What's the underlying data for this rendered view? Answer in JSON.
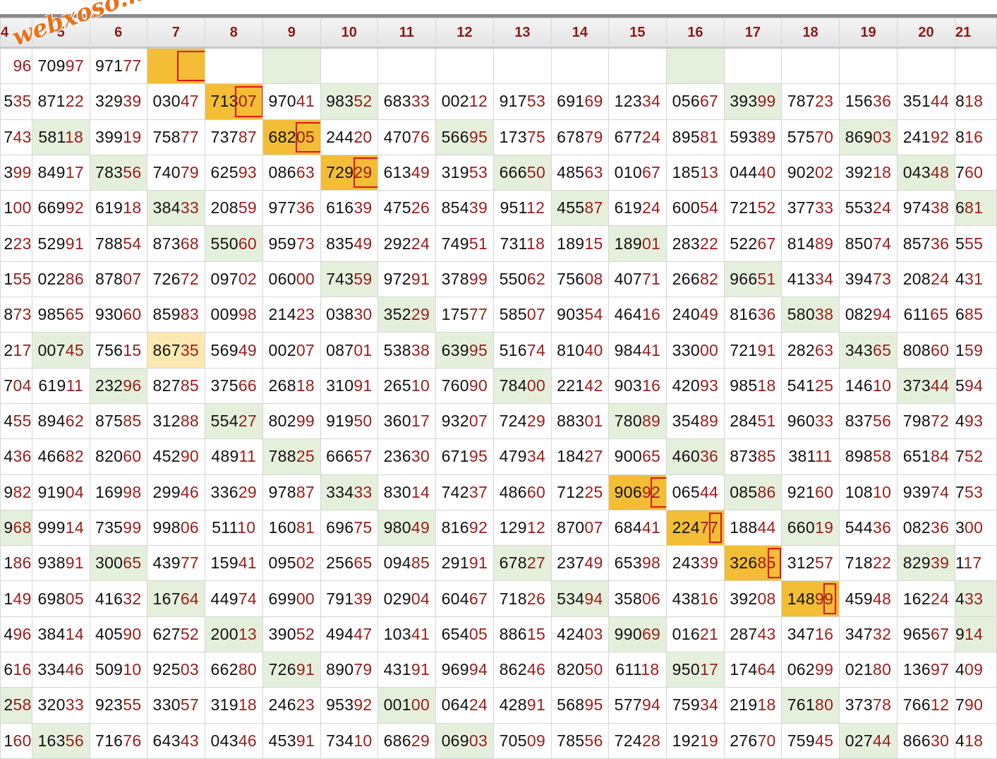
{
  "watermark": "webxoso.net",
  "headers": [
    "4",
    "5",
    "6",
    "7",
    "8",
    "9",
    "10",
    "11",
    "12",
    "13",
    "14",
    "15",
    "16",
    "17",
    "18",
    "19",
    "20",
    "21"
  ],
  "rows": [
    [
      {
        "t": "96"
      },
      {
        "t": "70997"
      },
      {
        "t": "97177"
      },
      {
        "t": "",
        "c": "o",
        "b": {
          "l": 42,
          "w": 45
        }
      },
      {
        "t": ""
      },
      {
        "t": "",
        "c": "g"
      },
      {
        "t": ""
      },
      {
        "t": ""
      },
      {
        "t": ""
      },
      {
        "t": ""
      },
      {
        "t": ""
      },
      {
        "t": ""
      },
      {
        "t": "",
        "c": "g"
      },
      {
        "t": ""
      },
      {
        "t": ""
      },
      {
        "t": ""
      },
      {
        "t": ""
      },
      {
        "t": ""
      }
    ],
    [
      {
        "t": "535"
      },
      {
        "t": "87122"
      },
      {
        "t": "32939"
      },
      {
        "t": "03047"
      },
      {
        "t": "71307",
        "c": "o",
        "b": {
          "l": 42,
          "w": 40
        }
      },
      {
        "t": "97041"
      },
      {
        "t": "98352",
        "c": "g"
      },
      {
        "t": "68333"
      },
      {
        "t": "00212"
      },
      {
        "t": "91753"
      },
      {
        "t": "69169"
      },
      {
        "t": "12334"
      },
      {
        "t": "05667"
      },
      {
        "t": "39399",
        "c": "g"
      },
      {
        "t": "78723"
      },
      {
        "t": "15636"
      },
      {
        "t": "35144"
      },
      {
        "t": "818"
      }
    ],
    [
      {
        "t": "743"
      },
      {
        "t": "58118",
        "c": "g"
      },
      {
        "t": "39919"
      },
      {
        "t": "75877"
      },
      {
        "t": "73787"
      },
      {
        "t": "68205",
        "c": "o",
        "b": {
          "l": 46,
          "w": 38
        }
      },
      {
        "t": "24420"
      },
      {
        "t": "47076"
      },
      {
        "t": "56695",
        "c": "g"
      },
      {
        "t": "17375"
      },
      {
        "t": "67879"
      },
      {
        "t": "67724"
      },
      {
        "t": "89581"
      },
      {
        "t": "59389"
      },
      {
        "t": "57570"
      },
      {
        "t": "86903",
        "c": "g"
      },
      {
        "t": "24192"
      },
      {
        "t": "816"
      }
    ],
    [
      {
        "t": "399"
      },
      {
        "t": "84917"
      },
      {
        "t": "78356",
        "c": "g"
      },
      {
        "t": "74079"
      },
      {
        "t": "62593"
      },
      {
        "t": "08663"
      },
      {
        "t": "72929",
        "c": "o",
        "b": {
          "l": 46,
          "w": 36
        }
      },
      {
        "t": "61349"
      },
      {
        "t": "31953"
      },
      {
        "t": "66650",
        "c": "g"
      },
      {
        "t": "48563"
      },
      {
        "t": "01067"
      },
      {
        "t": "18513"
      },
      {
        "t": "04440"
      },
      {
        "t": "90202"
      },
      {
        "t": "39218"
      },
      {
        "t": "04348",
        "c": "g"
      },
      {
        "t": "760"
      }
    ],
    [
      {
        "t": "100"
      },
      {
        "t": "66992"
      },
      {
        "t": "61918"
      },
      {
        "t": "38433",
        "c": "g"
      },
      {
        "t": "20859"
      },
      {
        "t": "97736"
      },
      {
        "t": "61639"
      },
      {
        "t": "47526"
      },
      {
        "t": "85439"
      },
      {
        "t": "95112"
      },
      {
        "t": "45587",
        "c": "g"
      },
      {
        "t": "61924"
      },
      {
        "t": "60054"
      },
      {
        "t": "72152"
      },
      {
        "t": "37733"
      },
      {
        "t": "55324"
      },
      {
        "t": "97438"
      },
      {
        "t": "681",
        "c": "g"
      }
    ],
    [
      {
        "t": "223"
      },
      {
        "t": "52991"
      },
      {
        "t": "78854"
      },
      {
        "t": "87368"
      },
      {
        "t": "55060",
        "c": "g"
      },
      {
        "t": "95973"
      },
      {
        "t": "83549"
      },
      {
        "t": "29224"
      },
      {
        "t": "74951"
      },
      {
        "t": "73118"
      },
      {
        "t": "18915"
      },
      {
        "t": "18901",
        "c": "g"
      },
      {
        "t": "28322"
      },
      {
        "t": "52267"
      },
      {
        "t": "81489"
      },
      {
        "t": "85074"
      },
      {
        "t": "85736"
      },
      {
        "t": "555"
      }
    ],
    [
      {
        "t": "155"
      },
      {
        "t": "02286"
      },
      {
        "t": "87807"
      },
      {
        "t": "72672"
      },
      {
        "t": "09702"
      },
      {
        "t": "06000"
      },
      {
        "t": "74359",
        "c": "g"
      },
      {
        "t": "97291"
      },
      {
        "t": "37899"
      },
      {
        "t": "55062"
      },
      {
        "t": "75608"
      },
      {
        "t": "40771"
      },
      {
        "t": "26682"
      },
      {
        "t": "96651",
        "c": "g"
      },
      {
        "t": "41334"
      },
      {
        "t": "39473"
      },
      {
        "t": "20824"
      },
      {
        "t": "431"
      }
    ],
    [
      {
        "t": "873"
      },
      {
        "t": "98565"
      },
      {
        "t": "93060"
      },
      {
        "t": "85983"
      },
      {
        "t": "00998"
      },
      {
        "t": "21423"
      },
      {
        "t": "03830"
      },
      {
        "t": "35229",
        "c": "g"
      },
      {
        "t": "17577"
      },
      {
        "t": "58507"
      },
      {
        "t": "90354"
      },
      {
        "t": "46416"
      },
      {
        "t": "24049"
      },
      {
        "t": "81636"
      },
      {
        "t": "58038",
        "c": "g"
      },
      {
        "t": "08294"
      },
      {
        "t": "61165"
      },
      {
        "t": "685"
      }
    ],
    [
      {
        "t": "217"
      },
      {
        "t": "00745",
        "c": "g"
      },
      {
        "t": "75615"
      },
      {
        "t": "86735",
        "c": "y"
      },
      {
        "t": "56949"
      },
      {
        "t": "00207"
      },
      {
        "t": "08701"
      },
      {
        "t": "53838"
      },
      {
        "t": "63995",
        "c": "g"
      },
      {
        "t": "51674"
      },
      {
        "t": "81040"
      },
      {
        "t": "98441"
      },
      {
        "t": "33000"
      },
      {
        "t": "72191"
      },
      {
        "t": "28263"
      },
      {
        "t": "34365",
        "c": "g"
      },
      {
        "t": "80860"
      },
      {
        "t": "159"
      }
    ],
    [
      {
        "t": "704"
      },
      {
        "t": "61911"
      },
      {
        "t": "23296",
        "c": "g"
      },
      {
        "t": "82785"
      },
      {
        "t": "37566"
      },
      {
        "t": "26818"
      },
      {
        "t": "31091"
      },
      {
        "t": "26510"
      },
      {
        "t": "76090"
      },
      {
        "t": "78400",
        "c": "g"
      },
      {
        "t": "22142"
      },
      {
        "t": "90316"
      },
      {
        "t": "42093"
      },
      {
        "t": "98518"
      },
      {
        "t": "54125"
      },
      {
        "t": "14610"
      },
      {
        "t": "37344",
        "c": "g"
      },
      {
        "t": "594"
      }
    ],
    [
      {
        "t": "455"
      },
      {
        "t": "89462"
      },
      {
        "t": "87585"
      },
      {
        "t": "31288"
      },
      {
        "t": "55427",
        "c": "g"
      },
      {
        "t": "80299"
      },
      {
        "t": "91950"
      },
      {
        "t": "36017"
      },
      {
        "t": "93207"
      },
      {
        "t": "72429"
      },
      {
        "t": "88301"
      },
      {
        "t": "78089",
        "c": "g"
      },
      {
        "t": "35489"
      },
      {
        "t": "28451"
      },
      {
        "t": "96033"
      },
      {
        "t": "83756"
      },
      {
        "t": "79872"
      },
      {
        "t": "493"
      }
    ],
    [
      {
        "t": "436"
      },
      {
        "t": "46682"
      },
      {
        "t": "82060"
      },
      {
        "t": "45290"
      },
      {
        "t": "48911"
      },
      {
        "t": "78825",
        "c": "g"
      },
      {
        "t": "66657"
      },
      {
        "t": "23630"
      },
      {
        "t": "67195"
      },
      {
        "t": "47934"
      },
      {
        "t": "18427"
      },
      {
        "t": "90065"
      },
      {
        "t": "46036",
        "c": "g"
      },
      {
        "t": "87385"
      },
      {
        "t": "38111"
      },
      {
        "t": "89858"
      },
      {
        "t": "65184"
      },
      {
        "t": "752"
      }
    ],
    [
      {
        "t": "982"
      },
      {
        "t": "91904"
      },
      {
        "t": "16998"
      },
      {
        "t": "29946"
      },
      {
        "t": "33629"
      },
      {
        "t": "97887"
      },
      {
        "t": "33433",
        "c": "g"
      },
      {
        "t": "83014"
      },
      {
        "t": "74237"
      },
      {
        "t": "48660"
      },
      {
        "t": "71225"
      },
      {
        "t": "90692",
        "c": "o",
        "b": {
          "l": 59,
          "w": 26
        }
      },
      {
        "t": "06544"
      },
      {
        "t": "08586",
        "c": "g"
      },
      {
        "t": "92160"
      },
      {
        "t": "10810"
      },
      {
        "t": "93974"
      },
      {
        "t": "753"
      }
    ],
    [
      {
        "t": "968",
        "c": "g"
      },
      {
        "t": "99914"
      },
      {
        "t": "73599"
      },
      {
        "t": "99806"
      },
      {
        "t": "51110"
      },
      {
        "t": "16081"
      },
      {
        "t": "69675"
      },
      {
        "t": "98049",
        "c": "g"
      },
      {
        "t": "81692"
      },
      {
        "t": "12912"
      },
      {
        "t": "87007"
      },
      {
        "t": "68441"
      },
      {
        "t": "22477",
        "c": "o",
        "b": {
          "l": 60,
          "w": 18
        }
      },
      {
        "t": "18844"
      },
      {
        "t": "66019",
        "c": "g"
      },
      {
        "t": "54436"
      },
      {
        "t": "08236"
      },
      {
        "t": "300"
      }
    ],
    [
      {
        "t": "186"
      },
      {
        "t": "93891"
      },
      {
        "t": "30065",
        "c": "g"
      },
      {
        "t": "43977"
      },
      {
        "t": "15941"
      },
      {
        "t": "09502"
      },
      {
        "t": "25665"
      },
      {
        "t": "09485"
      },
      {
        "t": "29191"
      },
      {
        "t": "67827",
        "c": "g"
      },
      {
        "t": "23749"
      },
      {
        "t": "65398"
      },
      {
        "t": "24339"
      },
      {
        "t": "32685",
        "c": "o",
        "b": {
          "l": 61,
          "w": 19
        }
      },
      {
        "t": "31257"
      },
      {
        "t": "71822"
      },
      {
        "t": "82939",
        "c": "g"
      },
      {
        "t": "117"
      }
    ],
    [
      {
        "t": "149"
      },
      {
        "t": "69805"
      },
      {
        "t": "41632"
      },
      {
        "t": "16764",
        "c": "g"
      },
      {
        "t": "44974"
      },
      {
        "t": "69900"
      },
      {
        "t": "79139"
      },
      {
        "t": "02904"
      },
      {
        "t": "60467"
      },
      {
        "t": "71826"
      },
      {
        "t": "53494",
        "c": "g"
      },
      {
        "t": "35806"
      },
      {
        "t": "43816"
      },
      {
        "t": "39208"
      },
      {
        "t": "14899",
        "c": "o",
        "b": {
          "l": 59,
          "w": 18
        }
      },
      {
        "t": "45948"
      },
      {
        "t": "16224"
      },
      {
        "t": "433",
        "c": "g"
      }
    ],
    [
      {
        "t": "496"
      },
      {
        "t": "38414"
      },
      {
        "t": "40590"
      },
      {
        "t": "62752"
      },
      {
        "t": "20013",
        "c": "g"
      },
      {
        "t": "39052"
      },
      {
        "t": "49447"
      },
      {
        "t": "10341"
      },
      {
        "t": "65405"
      },
      {
        "t": "88615"
      },
      {
        "t": "42403"
      },
      {
        "t": "99069",
        "c": "g"
      },
      {
        "t": "01621"
      },
      {
        "t": "28743"
      },
      {
        "t": "34716"
      },
      {
        "t": "34732"
      },
      {
        "t": "96567"
      },
      {
        "t": "914",
        "c": "g"
      }
    ],
    [
      {
        "t": "616"
      },
      {
        "t": "33446"
      },
      {
        "t": "50910"
      },
      {
        "t": "92503"
      },
      {
        "t": "66280"
      },
      {
        "t": "72691",
        "c": "g"
      },
      {
        "t": "89079"
      },
      {
        "t": "43191"
      },
      {
        "t": "96994"
      },
      {
        "t": "86246"
      },
      {
        "t": "82050"
      },
      {
        "t": "61118"
      },
      {
        "t": "95017",
        "c": "g"
      },
      {
        "t": "17464"
      },
      {
        "t": "06299"
      },
      {
        "t": "02180"
      },
      {
        "t": "13697"
      },
      {
        "t": "409"
      }
    ],
    [
      {
        "t": "258",
        "c": "g"
      },
      {
        "t": "32033"
      },
      {
        "t": "92355"
      },
      {
        "t": "33057"
      },
      {
        "t": "31918"
      },
      {
        "t": "24623"
      },
      {
        "t": "95392"
      },
      {
        "t": "00100",
        "c": "g"
      },
      {
        "t": "06424"
      },
      {
        "t": "42891"
      },
      {
        "t": "56895"
      },
      {
        "t": "57794"
      },
      {
        "t": "75934"
      },
      {
        "t": "21918"
      },
      {
        "t": "76180",
        "c": "g"
      },
      {
        "t": "37378"
      },
      {
        "t": "76612"
      },
      {
        "t": "790"
      }
    ],
    [
      {
        "t": "160"
      },
      {
        "t": "16356",
        "c": "g"
      },
      {
        "t": "71676"
      },
      {
        "t": "64343"
      },
      {
        "t": "04346"
      },
      {
        "t": "45391"
      },
      {
        "t": "73410"
      },
      {
        "t": "68629"
      },
      {
        "t": "06903",
        "c": "g"
      },
      {
        "t": "70509"
      },
      {
        "t": "78556"
      },
      {
        "t": "72428"
      },
      {
        "t": "19219"
      },
      {
        "t": "27670"
      },
      {
        "t": "75945"
      },
      {
        "t": "02744",
        "c": "g"
      },
      {
        "t": "86630"
      },
      {
        "t": "418"
      }
    ]
  ]
}
